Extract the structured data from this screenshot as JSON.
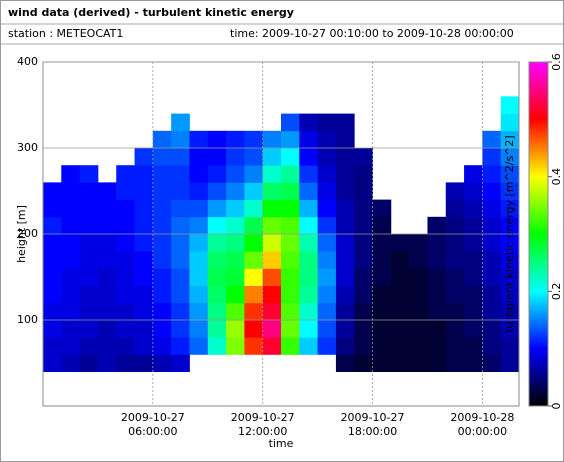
{
  "header": {
    "title": "wind data (derived) - turbulent kinetic energy",
    "station": "station : METEOCAT1",
    "time": "time: 2009-10-27 00:10:00 to 2009-10-28 00:00:00"
  },
  "chart_data": {
    "type": "heatmap",
    "xlabel": "time",
    "ylabel": "height [m]",
    "colorbar_label": "turbulent kinetic energy [m^2/s^2]",
    "xlim": [
      "2009-10-27 00:00:00",
      "2009-10-28 02:00:00"
    ],
    "xticks": [
      "2009-10-27 06:00:00",
      "2009-10-27 12:00:00",
      "2009-10-27 18:00:00",
      "2009-10-28 00:00:00"
    ],
    "ylim": [
      0,
      400
    ],
    "yticks": [
      100,
      200,
      300,
      400
    ],
    "clim": [
      0,
      0.6
    ],
    "cticks": [
      0,
      0.2,
      0.4,
      0.6
    ],
    "colormap": [
      "#000000",
      "#0000ff",
      "#00ffff",
      "#00ff00",
      "#ffff00",
      "#ff0000",
      "#ff00ff"
    ],
    "grid": true,
    "xbins": [
      "2009-10-27 00:00:00",
      "2009-10-27 01:00:00",
      "2009-10-27 02:00:00",
      "2009-10-27 03:00:00",
      "2009-10-27 04:00:00",
      "2009-10-27 05:00:00",
      "2009-10-27 06:00:00",
      "2009-10-27 07:00:00",
      "2009-10-27 08:00:00",
      "2009-10-27 09:00:00",
      "2009-10-27 10:00:00",
      "2009-10-27 11:00:00",
      "2009-10-27 12:00:00",
      "2009-10-27 13:00:00",
      "2009-10-27 14:00:00",
      "2009-10-27 15:00:00",
      "2009-10-27 16:00:00",
      "2009-10-27 17:00:00",
      "2009-10-27 18:00:00",
      "2009-10-27 19:00:00",
      "2009-10-27 20:00:00",
      "2009-10-27 21:00:00",
      "2009-10-27 22:00:00",
      "2009-10-27 23:00:00",
      "2009-10-28 00:00:00",
      "2009-10-28 01:00:00",
      "2009-10-28 02:00:00"
    ],
    "ybins": [
      40,
      60,
      80,
      100,
      120,
      140,
      160,
      180,
      200,
      220,
      240,
      260,
      280,
      300,
      320,
      340,
      360
    ],
    "z": [
      [
        0.08,
        0.07,
        0.06,
        0.07,
        0.06,
        0.06,
        0.07,
        0.08,
        null,
        null,
        null,
        null,
        null,
        null,
        null,
        null,
        0.03,
        0.02,
        0.02,
        0.02,
        0.02,
        0.02,
        0.03,
        0.03,
        0.04,
        0.06
      ],
      [
        0.08,
        0.08,
        0.07,
        0.07,
        0.07,
        0.08,
        0.09,
        0.11,
        0.14,
        0.22,
        0.35,
        0.48,
        0.52,
        0.32,
        0.18,
        0.12,
        0.05,
        0.03,
        0.02,
        0.02,
        0.02,
        0.02,
        0.03,
        0.03,
        0.05,
        0.06
      ],
      [
        0.09,
        0.08,
        0.08,
        0.07,
        0.08,
        0.08,
        0.1,
        0.12,
        0.15,
        0.24,
        0.36,
        0.5,
        0.55,
        0.34,
        0.2,
        0.13,
        0.06,
        0.03,
        0.02,
        0.02,
        0.02,
        0.02,
        0.03,
        0.04,
        0.05,
        0.07
      ],
      [
        0.09,
        0.09,
        0.08,
        0.08,
        0.08,
        0.09,
        0.1,
        0.12,
        0.16,
        0.25,
        0.33,
        0.48,
        0.52,
        0.33,
        0.22,
        0.14,
        0.06,
        0.03,
        0.02,
        0.02,
        0.02,
        0.03,
        0.03,
        0.04,
        0.06,
        0.07
      ],
      [
        0.1,
        0.09,
        0.08,
        0.08,
        0.09,
        0.09,
        0.11,
        0.13,
        0.17,
        0.26,
        0.3,
        0.45,
        0.5,
        0.32,
        0.24,
        0.15,
        0.07,
        0.04,
        0.02,
        0.02,
        0.02,
        0.03,
        0.04,
        0.04,
        0.06,
        0.08
      ],
      [
        0.1,
        0.09,
        0.09,
        0.08,
        0.09,
        0.1,
        0.11,
        0.13,
        0.18,
        0.27,
        0.28,
        0.4,
        0.47,
        0.32,
        0.25,
        0.16,
        0.08,
        0.04,
        0.03,
        0.02,
        0.02,
        0.03,
        0.04,
        0.05,
        0.07,
        0.08
      ],
      [
        0.1,
        0.1,
        0.09,
        0.09,
        0.09,
        0.1,
        0.12,
        0.14,
        0.18,
        0.26,
        0.27,
        0.34,
        0.42,
        0.33,
        0.25,
        0.15,
        0.08,
        0.05,
        0.03,
        0.02,
        0.03,
        0.04,
        0.05,
        0.05,
        0.07,
        0.09
      ],
      [
        0.1,
        0.1,
        0.09,
        0.09,
        0.1,
        0.11,
        0.12,
        0.14,
        0.17,
        0.24,
        0.25,
        0.3,
        0.38,
        0.34,
        0.23,
        0.14,
        0.08,
        0.05,
        0.03,
        0.03,
        0.03,
        0.04,
        0.05,
        0.06,
        0.08,
        0.1
      ],
      [
        0.11,
        0.1,
        0.1,
        0.1,
        0.1,
        0.11,
        0.12,
        0.14,
        0.15,
        0.2,
        0.22,
        0.27,
        0.34,
        0.33,
        0.2,
        0.12,
        0.07,
        0.05,
        0.03,
        null,
        null,
        0.04,
        0.05,
        0.06,
        0.08,
        0.1
      ],
      [
        0.1,
        0.1,
        0.1,
        0.1,
        0.1,
        0.11,
        0.12,
        0.13,
        0.13,
        0.16,
        0.18,
        0.22,
        0.3,
        0.3,
        0.17,
        0.1,
        0.07,
        0.05,
        0.04,
        null,
        null,
        null,
        0.06,
        0.07,
        0.09,
        0.11
      ],
      [
        0.1,
        0.1,
        0.1,
        0.1,
        0.11,
        0.11,
        0.12,
        0.12,
        0.11,
        0.13,
        0.15,
        0.18,
        0.26,
        0.27,
        0.14,
        0.09,
        0.06,
        0.05,
        null,
        null,
        null,
        null,
        0.07,
        0.08,
        0.1,
        0.12
      ],
      [
        null,
        0.1,
        0.11,
        null,
        0.11,
        0.11,
        0.12,
        0.12,
        0.1,
        0.11,
        0.13,
        0.15,
        0.22,
        0.24,
        0.12,
        0.08,
        0.06,
        0.05,
        null,
        null,
        null,
        null,
        null,
        0.09,
        0.11,
        0.13
      ],
      [
        null,
        null,
        null,
        null,
        null,
        0.12,
        0.13,
        0.13,
        0.1,
        0.1,
        0.12,
        0.13,
        0.18,
        0.2,
        0.1,
        0.07,
        0.06,
        0.06,
        null,
        null,
        null,
        null,
        null,
        null,
        0.12,
        0.15
      ],
      [
        null,
        null,
        null,
        null,
        null,
        null,
        0.14,
        0.15,
        0.11,
        0.1,
        0.11,
        0.12,
        0.15,
        0.16,
        0.09,
        0.07,
        0.06,
        null,
        null,
        null,
        null,
        null,
        null,
        null,
        0.14,
        0.17
      ],
      [
        null,
        null,
        null,
        null,
        null,
        null,
        null,
        0.16,
        null,
        null,
        null,
        null,
        null,
        0.13,
        0.07,
        0.06,
        0.06,
        null,
        null,
        null,
        null,
        null,
        null,
        null,
        null,
        0.19
      ],
      [
        null,
        null,
        null,
        null,
        null,
        null,
        null,
        null,
        null,
        null,
        null,
        null,
        null,
        null,
        null,
        null,
        null,
        null,
        null,
        null,
        null,
        null,
        null,
        null,
        null,
        0.2
      ]
    ]
  }
}
